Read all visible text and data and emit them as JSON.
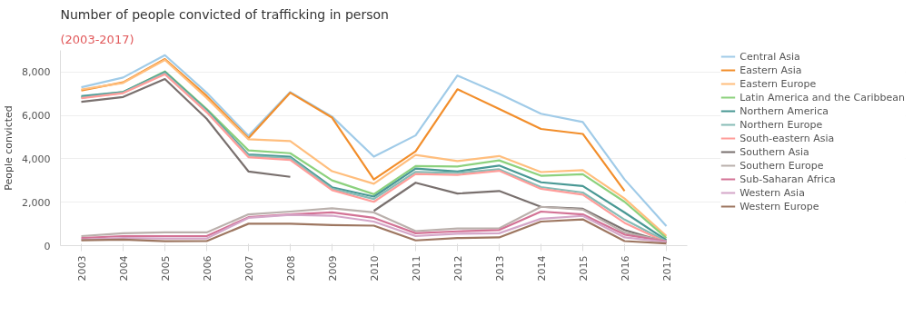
{
  "chart_data": {
    "type": "line",
    "title": "Number of people convicted of trafficking in person",
    "subtitle": "(2003-2017)",
    "ylabel": "People convicted",
    "categories": [
      "2003",
      "2004",
      "2005",
      "2006",
      "2007",
      "2008",
      "2009",
      "2010",
      "2011",
      "2012",
      "2013",
      "2014",
      "2015",
      "2016",
      "2017"
    ],
    "ylim": [
      0,
      9000
    ],
    "yticks": [
      0,
      {
        "value": 2000,
        "label": "2,000"
      },
      {
        "value": 4000,
        "label": "4,000"
      },
      {
        "value": 6000,
        "label": "6,000"
      },
      {
        "value": 8000,
        "label": "8,000"
      }
    ],
    "grid": "y",
    "legend": "right",
    "line_style": "solid",
    "marker": "none",
    "series": [
      {
        "name": "Central Asia",
        "color": "#a0cbe8",
        "values": [
          7300,
          7750,
          8780,
          7050,
          5060,
          7080,
          5950,
          4100,
          5080,
          7840,
          7000,
          6080,
          5700,
          3050,
          900
        ]
      },
      {
        "name": "Eastern Asia",
        "color": "#f28e2b",
        "values": [
          7150,
          7530,
          8600,
          6900,
          4950,
          7050,
          5900,
          3050,
          4350,
          7210,
          6300,
          5380,
          5150,
          2520,
          null
        ]
      },
      {
        "name": "Eastern Europe",
        "color": "#ffbe7d",
        "values": [
          7200,
          7500,
          8560,
          6800,
          4900,
          4820,
          3430,
          2850,
          4180,
          3900,
          4130,
          3390,
          3480,
          2170,
          450
        ]
      },
      {
        "name": "Latin America and the Caribbean",
        "color": "#8cd17d",
        "values": [
          6850,
          7080,
          8030,
          6300,
          4390,
          4260,
          3010,
          2370,
          3670,
          3650,
          3930,
          3220,
          3290,
          2020,
          350
        ]
      },
      {
        "name": "Northern America",
        "color": "#499894",
        "values": [
          6890,
          7080,
          8000,
          6250,
          4200,
          4100,
          2690,
          2260,
          3550,
          3420,
          3690,
          2920,
          2750,
          1530,
          250
        ]
      },
      {
        "name": "Northern Europe",
        "color": "#86bcb6",
        "values": [
          6820,
          7050,
          7950,
          6200,
          4150,
          4030,
          2620,
          2150,
          3400,
          3350,
          3520,
          2700,
          2450,
          1200,
          200
        ]
      },
      {
        "name": "South-eastern Asia",
        "color": "#ff9d9a",
        "values": [
          6800,
          7030,
          7900,
          6150,
          4080,
          3950,
          2560,
          2020,
          3300,
          3260,
          3450,
          2620,
          2350,
          1050,
          150
        ]
      },
      {
        "name": "Southern Asia",
        "color": "#79706e",
        "values": [
          6630,
          6850,
          7680,
          5850,
          3420,
          3170,
          null,
          1600,
          2900,
          2400,
          2520,
          1790,
          1700,
          720,
          150
        ]
      },
      {
        "name": "Southern Europe",
        "color": "#bab0ac",
        "values": [
          440,
          570,
          610,
          610,
          1440,
          1570,
          1720,
          1530,
          670,
          790,
          800,
          1790,
          1660,
          600,
          210
        ]
      },
      {
        "name": "Sub-Saharan Africa",
        "color": "#d37295",
        "values": [
          350,
          440,
          440,
          440,
          1310,
          1440,
          1530,
          1280,
          570,
          660,
          720,
          1570,
          1440,
          510,
          200
        ]
      },
      {
        "name": "Western Asia",
        "color": "#d4a6c8",
        "values": [
          280,
          350,
          330,
          330,
          1280,
          1420,
          1380,
          1110,
          440,
          550,
          570,
          1240,
          1370,
          380,
          160
        ]
      },
      {
        "name": "Western Europe",
        "color": "#9d7660",
        "values": [
          250,
          280,
          200,
          210,
          1010,
          1010,
          950,
          920,
          240,
          350,
          380,
          1110,
          1210,
          210,
          100
        ]
      }
    ]
  }
}
